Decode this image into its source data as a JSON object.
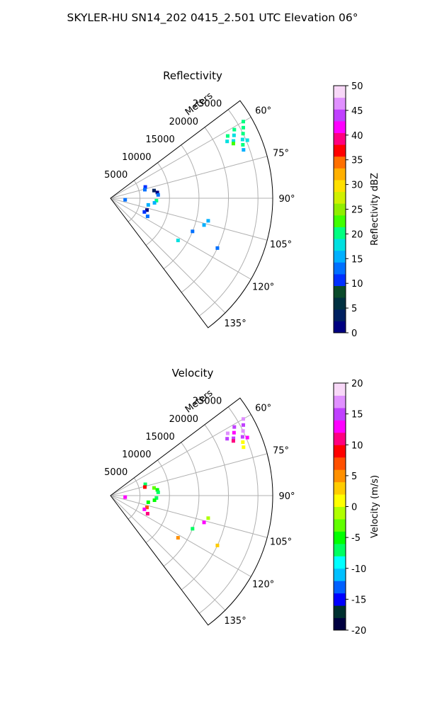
{
  "figure_title": "SKYLER-HU  SN14_202  0415_2.501 UTC Elevation 06°",
  "colors": {
    "grid": "#b0b0b0",
    "frame": "#000000",
    "refl_scale": [
      "#000080",
      "#002060",
      "#003040",
      "#0a4a2a",
      "#0030ff",
      "#0070ff",
      "#00b0ff",
      "#00e0e0",
      "#00ff80",
      "#40ff00",
      "#90ee00",
      "#d0f000",
      "#ffe000",
      "#ffb000",
      "#ff7000",
      "#ff0000",
      "#ff0080",
      "#ff00ff",
      "#c040ff",
      "#e090ff",
      "#f8d8f8"
    ],
    "vel_scale": [
      "#000040",
      "#003030",
      "#0000ff",
      "#0060ff",
      "#00c0ff",
      "#00ffff",
      "#00ff60",
      "#00ff00",
      "#60ff00",
      "#b0ff00",
      "#ffff00",
      "#ffcc00",
      "#ff9000",
      "#ff5000",
      "#ff0000",
      "#ff0080",
      "#ff00ff",
      "#c040ff",
      "#e090ff",
      "#f8d8f8"
    ]
  },
  "chart_data": [
    {
      "type": "polar-sector",
      "title": "Reflectivity",
      "radial_label": "Meters",
      "radial_ticks": [
        5000,
        10000,
        15000,
        20000,
        25000
      ],
      "r_max": 27500,
      "angle_range_deg": [
        53,
        143
      ],
      "angle_ticks": [
        "60°",
        "75°",
        "90°",
        "105°",
        "120°",
        "135°"
      ],
      "angle_tick_values": [
        60,
        75,
        90,
        105,
        120,
        135
      ],
      "colorbar": {
        "label": "Reflectivity dBZ",
        "range": [
          0,
          50
        ],
        "ticks": [
          0,
          5,
          10,
          15,
          20,
          25,
          30,
          35,
          40,
          45,
          50
        ]
      },
      "echoes": [
        {
          "az": 62,
          "r": 25500,
          "v": 20
        },
        {
          "az": 64,
          "r": 25000,
          "v": 21
        },
        {
          "az": 66,
          "r": 24500,
          "v": 19
        },
        {
          "az": 61,
          "r": 24000,
          "v": 20
        },
        {
          "az": 63,
          "r": 23500,
          "v": 18
        },
        {
          "az": 65,
          "r": 23000,
          "v": 19
        },
        {
          "az": 62,
          "r": 22500,
          "v": 20
        },
        {
          "az": 64,
          "r": 22000,
          "v": 17
        },
        {
          "az": 60,
          "r": 26000,
          "v": 21
        },
        {
          "az": 67,
          "r": 25200,
          "v": 18
        },
        {
          "az": 68,
          "r": 24200,
          "v": 20
        },
        {
          "az": 66,
          "r": 22800,
          "v": 22
        },
        {
          "az": 70,
          "r": 24000,
          "v": 16
        },
        {
          "az": 72,
          "r": 6200,
          "v": 11
        },
        {
          "az": 76,
          "r": 6000,
          "v": 12
        },
        {
          "az": 80,
          "r": 7500,
          "v": 4
        },
        {
          "az": 83,
          "r": 8000,
          "v": 0
        },
        {
          "az": 86,
          "r": 8100,
          "v": 14
        },
        {
          "az": 93,
          "r": 7800,
          "v": 20
        },
        {
          "az": 96,
          "r": 7500,
          "v": 16
        },
        {
          "az": 100,
          "r": 6500,
          "v": 15
        },
        {
          "az": 108,
          "r": 6500,
          "v": 2
        },
        {
          "az": 112,
          "r": 6200,
          "v": 10
        },
        {
          "az": 116,
          "r": 7000,
          "v": 14
        },
        {
          "az": 96,
          "r": 2500,
          "v": 13
        },
        {
          "az": 103,
          "r": 17000,
          "v": 15
        },
        {
          "az": 106,
          "r": 16500,
          "v": 16
        },
        {
          "az": 112,
          "r": 15000,
          "v": 12
        },
        {
          "az": 122,
          "r": 13500,
          "v": 17
        },
        {
          "az": 115,
          "r": 20000,
          "v": 14
        }
      ]
    },
    {
      "type": "polar-sector",
      "title": "Velocity",
      "radial_label": "Meters",
      "radial_ticks": [
        5000,
        10000,
        15000,
        20000,
        25000
      ],
      "r_max": 27500,
      "angle_range_deg": [
        53,
        143
      ],
      "angle_ticks": [
        "60°",
        "75°",
        "90°",
        "105°",
        "120°",
        "135°"
      ],
      "angle_tick_values": [
        60,
        75,
        90,
        105,
        120,
        135
      ],
      "colorbar": {
        "label": "Velocity (m/s)",
        "range": [
          -20,
          20
        ],
        "ticks": [
          -20,
          -15,
          -10,
          -5,
          0,
          5,
          10,
          15,
          20
        ]
      },
      "echoes": [
        {
          "az": 62,
          "r": 25500,
          "v": 15
        },
        {
          "az": 64,
          "r": 25000,
          "v": 16
        },
        {
          "az": 66,
          "r": 24500,
          "v": 14
        },
        {
          "az": 61,
          "r": 24000,
          "v": 15
        },
        {
          "az": 63,
          "r": 23500,
          "v": 13
        },
        {
          "az": 65,
          "r": 23000,
          "v": 15
        },
        {
          "az": 62,
          "r": 22500,
          "v": 17
        },
        {
          "az": 64,
          "r": 22000,
          "v": 14
        },
        {
          "az": 60,
          "r": 26000,
          "v": 16
        },
        {
          "az": 67,
          "r": 25200,
          "v": 12
        },
        {
          "az": 68,
          "r": 24200,
          "v": 1
        },
        {
          "az": 66,
          "r": 22800,
          "v": 10
        },
        {
          "az": 70,
          "r": 24000,
          "v": 0
        },
        {
          "az": 72,
          "r": 6200,
          "v": -7
        },
        {
          "az": 76,
          "r": 6000,
          "v": 8
        },
        {
          "az": 80,
          "r": 7500,
          "v": -3
        },
        {
          "az": 83,
          "r": 8000,
          "v": -6
        },
        {
          "az": 86,
          "r": 8100,
          "v": -8
        },
        {
          "az": 93,
          "r": 7800,
          "v": -7
        },
        {
          "az": 96,
          "r": 7500,
          "v": -6
        },
        {
          "az": 100,
          "r": 6500,
          "v": -5
        },
        {
          "az": 108,
          "r": 6500,
          "v": 6
        },
        {
          "az": 112,
          "r": 6200,
          "v": 12
        },
        {
          "az": 116,
          "r": 7000,
          "v": 10
        },
        {
          "az": 96,
          "r": 2500,
          "v": 12
        },
        {
          "az": 103,
          "r": 17000,
          "v": -1
        },
        {
          "az": 106,
          "r": 16500,
          "v": 12
        },
        {
          "az": 112,
          "r": 15000,
          "v": -8
        },
        {
          "az": 122,
          "r": 13500,
          "v": 5
        },
        {
          "az": 115,
          "r": 20000,
          "v": 2
        }
      ]
    }
  ]
}
